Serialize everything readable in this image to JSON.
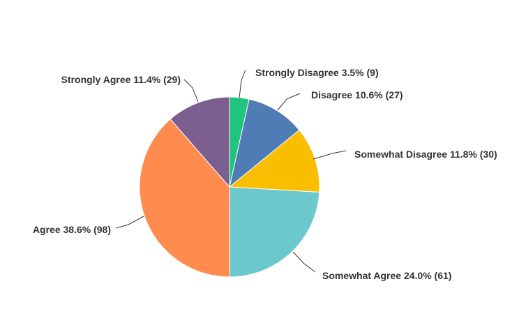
{
  "chart_data": {
    "type": "pie",
    "title": "",
    "start": "top",
    "direction": "clockwise",
    "slices": [
      {
        "name": "Strongly Disagree",
        "percent": 3.5,
        "count": 9,
        "label": "Strongly Disagree 3.5% (9)",
        "color": "#1fc57c"
      },
      {
        "name": "Disagree",
        "percent": 10.6,
        "count": 27,
        "label": "Disagree 10.6% (27)",
        "color": "#507cb6"
      },
      {
        "name": "Somewhat Disagree",
        "percent": 11.8,
        "count": 30,
        "label": "Somewhat Disagree 11.8% (30)",
        "color": "#f9be00"
      },
      {
        "name": "Somewhat Agree",
        "percent": 24.0,
        "count": 61,
        "label": "Somewhat Agree 24.0% (61)",
        "color": "#6bc8cd"
      },
      {
        "name": "Agree",
        "percent": 38.6,
        "count": 98,
        "label": "Agree 38.6% (98)",
        "color": "#ff8b4f"
      },
      {
        "name": "Strongly Agree",
        "percent": 11.4,
        "count": 29,
        "label": "Strongly Agree 11.4% (29)",
        "color": "#7d5e90"
      }
    ]
  }
}
